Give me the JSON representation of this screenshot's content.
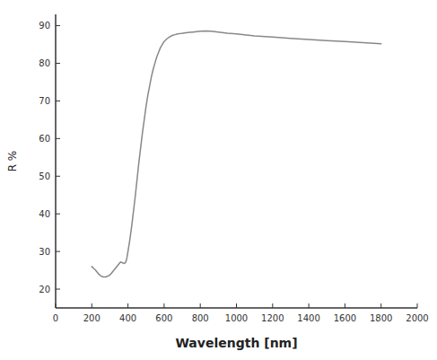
{
  "chart_data": {
    "type": "line",
    "xlabel": "Wavelength [nm]",
    "ylabel": "R %",
    "xlim": [
      0,
      2000
    ],
    "ylim": [
      15,
      93
    ],
    "xticks": [
      0,
      200,
      400,
      600,
      800,
      1000,
      1200,
      1400,
      1600,
      1800,
      2000
    ],
    "yticks": [
      20,
      30,
      40,
      50,
      60,
      70,
      80,
      90
    ],
    "x": [
      200,
      210,
      218,
      225,
      230,
      235,
      240,
      245,
      250,
      255,
      260,
      265,
      270,
      275,
      280,
      285,
      290,
      295,
      300,
      305,
      310,
      315,
      320,
      325,
      330,
      335,
      340,
      345,
      350,
      355,
      360,
      365,
      370,
      375,
      380,
      385,
      390,
      395,
      400,
      410,
      420,
      430,
      440,
      450,
      460,
      470,
      480,
      490,
      500,
      510,
      520,
      530,
      540,
      550,
      560,
      570,
      580,
      590,
      600,
      615,
      630,
      645,
      660,
      675,
      690,
      705,
      720,
      740,
      760,
      780,
      800,
      830,
      860,
      900,
      950,
      1000,
      1100,
      1200,
      1300,
      1400,
      1500,
      1600,
      1700,
      1800
    ],
    "series": [
      {
        "color": "#888888",
        "values": [
          26.0,
          25.5,
          25.2,
          24.8,
          24.5,
          24.2,
          23.9,
          23.7,
          23.5,
          23.4,
          23.3,
          23.2,
          23.2,
          23.2,
          23.3,
          23.4,
          23.5,
          23.6,
          23.8,
          24.0,
          24.3,
          24.6,
          24.9,
          25.2,
          25.5,
          25.8,
          26.1,
          26.4,
          26.7,
          27.0,
          27.2,
          27.1,
          27.0,
          26.9,
          26.8,
          27.0,
          27.5,
          28.5,
          30.0,
          33.0,
          36.5,
          40.5,
          44.5,
          49.0,
          53.5,
          57.5,
          61.5,
          65.0,
          68.5,
          71.5,
          74.0,
          76.5,
          78.5,
          80.2,
          81.8,
          83.0,
          84.2,
          85.0,
          85.8,
          86.5,
          87.0,
          87.4,
          87.6,
          87.8,
          87.9,
          88.0,
          88.1,
          88.2,
          88.3,
          88.4,
          88.5,
          88.6,
          88.5,
          88.3,
          88.0,
          87.8,
          87.3,
          87.0,
          86.6,
          86.3,
          86.0,
          85.8,
          85.5,
          85.2
        ]
      }
    ]
  }
}
